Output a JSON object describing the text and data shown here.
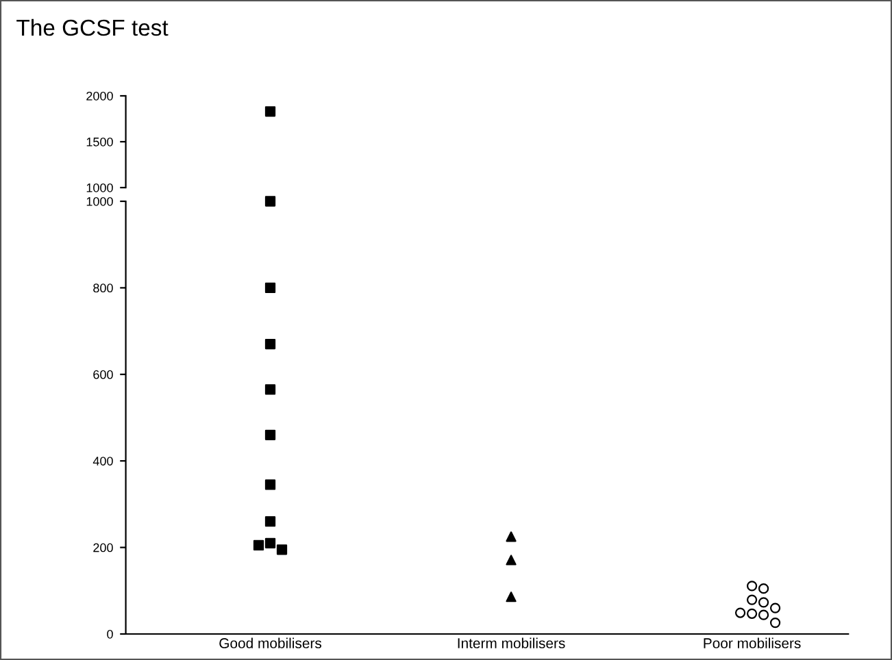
{
  "chart_data": [
    {
      "type": "scatter",
      "title": "The GCSF test",
      "categories": [
        "Good mobilisers",
        "Interm mobilisers",
        "Poor mobilisers"
      ],
      "ylim": [
        1000,
        2000
      ],
      "yticks": [
        1000,
        1500,
        2000
      ],
      "tick_labels": "y",
      "series": [
        {
          "color": "#000000",
          "marker": "square",
          "x": [
            "Good mobilisers"
          ],
          "values": [
            1830
          ]
        }
      ]
    },
    {
      "type": "scatter",
      "categories": [
        "Good mobilisers",
        "Interm mobilisers",
        "Poor mobilisers"
      ],
      "ylim": [
        0,
        1000
      ],
      "yticks": [
        0,
        200,
        400,
        600,
        800,
        1000
      ],
      "series": [
        {
          "color": "#000000",
          "marker": "square",
          "x": [
            "Good mobilisers",
            "Good mobilisers",
            "Good mobilisers",
            "Good mobilisers",
            "Good mobilisers",
            "Good mobilisers",
            "Good mobilisers",
            "Good mobilisers",
            "Good mobilisers",
            "Good mobilisers"
          ],
          "values": [
            1000,
            800,
            670,
            565,
            460,
            345,
            260,
            210,
            195,
            205
          ]
        },
        {
          "color": "#000000",
          "marker": "triangle",
          "x": [
            "Interm mobilisers",
            "Interm mobilisers",
            "Interm mobilisers"
          ],
          "values": [
            225,
            171,
            86
          ]
        },
        {
          "color": "#000000",
          "marker": "circle",
          "x": [
            "Poor mobilisers",
            "Poor mobilisers",
            "Poor mobilisers",
            "Poor mobilisers",
            "Poor mobilisers",
            "Poor mobilisers",
            "Poor mobilisers",
            "Poor mobilisers",
            "Poor mobilisers"
          ],
          "values": [
            111,
            105,
            79,
            73,
            47,
            44,
            49,
            26,
            60
          ]
        }
      ]
    }
  ]
}
